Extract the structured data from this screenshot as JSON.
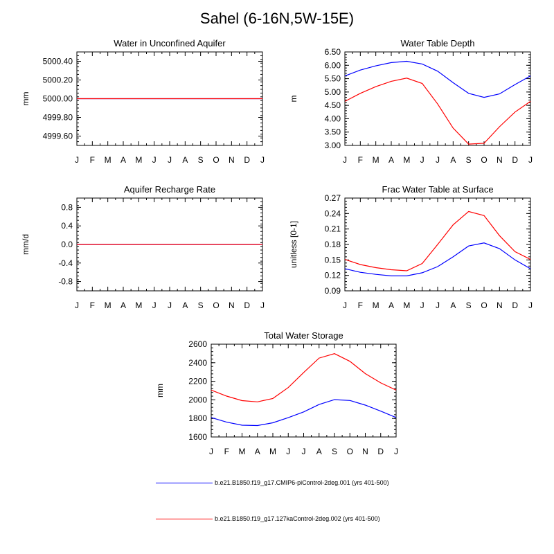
{
  "title": "Sahel (6-16N,5W-15E)",
  "months": [
    "J",
    "F",
    "M",
    "A",
    "M",
    "J",
    "J",
    "A",
    "S",
    "O",
    "N",
    "D",
    "J"
  ],
  "colors": {
    "series1": "#0000ff",
    "series2": "#ff0000",
    "axes": "#000000"
  },
  "legend": [
    {
      "label": "b.e21.B1850.f19_g17.CMIP6-piControl-2deg.001 (yrs 401-500)",
      "color": "#0000ff"
    },
    {
      "label": "b.e21.B1850.f19_g17.127kaControl-2deg.002 (yrs 401-500)",
      "color": "#ff0000"
    }
  ],
  "chart_data": [
    {
      "id": "water-in-unconfined-aquifer",
      "type": "line",
      "title": "Water in Unconfined Aquifer",
      "ylabel": "mm",
      "ylim": [
        4999.5,
        5000.5
      ],
      "yticks": [
        "4999.60",
        "4999.80",
        "5000.00",
        "5000.20",
        "5000.40"
      ],
      "categories": [
        "J",
        "F",
        "M",
        "A",
        "M",
        "J",
        "J",
        "A",
        "S",
        "O",
        "N",
        "D",
        "J"
      ],
      "series": [
        {
          "color": "#0000ff",
          "values": [
            5000,
            5000,
            5000,
            5000,
            5000,
            5000,
            5000,
            5000,
            5000,
            5000,
            5000,
            5000,
            5000
          ]
        },
        {
          "color": "#ff0000",
          "values": [
            5000,
            5000,
            5000,
            5000,
            5000,
            5000,
            5000,
            5000,
            5000,
            5000,
            5000,
            5000,
            5000
          ]
        }
      ]
    },
    {
      "id": "water-table-depth",
      "type": "line",
      "title": "Water Table Depth",
      "ylabel": "m",
      "ylim": [
        3.0,
        6.5
      ],
      "yticks": [
        "3.00",
        "3.50",
        "4.00",
        "4.50",
        "5.00",
        "5.50",
        "6.00",
        "6.50"
      ],
      "categories": [
        "J",
        "F",
        "M",
        "A",
        "M",
        "J",
        "J",
        "A",
        "S",
        "O",
        "N",
        "D",
        "J"
      ],
      "series": [
        {
          "color": "#0000ff",
          "values": [
            5.6,
            5.82,
            5.98,
            6.1,
            6.15,
            6.05,
            5.78,
            5.35,
            4.95,
            4.8,
            4.93,
            5.28,
            5.6
          ]
        },
        {
          "color": "#ff0000",
          "values": [
            4.65,
            4.95,
            5.2,
            5.4,
            5.52,
            5.32,
            4.55,
            3.65,
            3.05,
            3.08,
            3.7,
            4.25,
            4.65
          ]
        }
      ]
    },
    {
      "id": "aquifer-recharge-rate",
      "type": "line",
      "title": "Aquifer Recharge Rate",
      "ylabel": "mm/d",
      "ylim": [
        -1.0,
        1.0
      ],
      "yticks": [
        "-0.8",
        "-0.4",
        "0.0",
        "0.4",
        "0.8"
      ],
      "categories": [
        "J",
        "F",
        "M",
        "A",
        "M",
        "J",
        "J",
        "A",
        "S",
        "O",
        "N",
        "D",
        "J"
      ],
      "series": [
        {
          "color": "#0000ff",
          "values": [
            0,
            0,
            0,
            0,
            0,
            0,
            0,
            0,
            0,
            0,
            0,
            0,
            0
          ]
        },
        {
          "color": "#ff0000",
          "values": [
            0,
            0,
            0,
            0,
            0,
            0,
            0,
            0,
            0,
            0,
            0,
            0,
            0
          ]
        }
      ]
    },
    {
      "id": "frac-water-table-at-surface",
      "type": "line",
      "title": "Frac Water Table at Surface",
      "ylabel": "unitless [0-1]",
      "ylim": [
        0.09,
        0.27
      ],
      "yticks": [
        "0.09",
        "0.12",
        "0.15",
        "0.18",
        "0.21",
        "0.24",
        "0.27"
      ],
      "categories": [
        "J",
        "F",
        "M",
        "A",
        "M",
        "J",
        "J",
        "A",
        "S",
        "O",
        "N",
        "D",
        "J"
      ],
      "series": [
        {
          "color": "#0000ff",
          "values": [
            0.133,
            0.126,
            0.122,
            0.119,
            0.119,
            0.125,
            0.137,
            0.156,
            0.177,
            0.183,
            0.172,
            0.15,
            0.133
          ]
        },
        {
          "color": "#ff0000",
          "values": [
            0.151,
            0.141,
            0.135,
            0.131,
            0.129,
            0.143,
            0.18,
            0.218,
            0.244,
            0.236,
            0.197,
            0.166,
            0.151
          ]
        }
      ]
    },
    {
      "id": "total-water-storage",
      "type": "line",
      "title": "Total Water Storage",
      "ylabel": "mm",
      "ylim": [
        1600,
        2600
      ],
      "yticks": [
        "1600",
        "1800",
        "2000",
        "2200",
        "2400",
        "2600"
      ],
      "categories": [
        "J",
        "F",
        "M",
        "A",
        "M",
        "J",
        "J",
        "A",
        "S",
        "O",
        "N",
        "D",
        "J"
      ],
      "series": [
        {
          "color": "#0000ff",
          "values": [
            1810,
            1760,
            1727,
            1723,
            1753,
            1808,
            1870,
            1950,
            2002,
            1993,
            1943,
            1878,
            1810
          ]
        },
        {
          "color": "#ff0000",
          "values": [
            2105,
            2040,
            1992,
            1978,
            2015,
            2133,
            2295,
            2450,
            2498,
            2415,
            2283,
            2183,
            2105
          ]
        }
      ]
    }
  ]
}
